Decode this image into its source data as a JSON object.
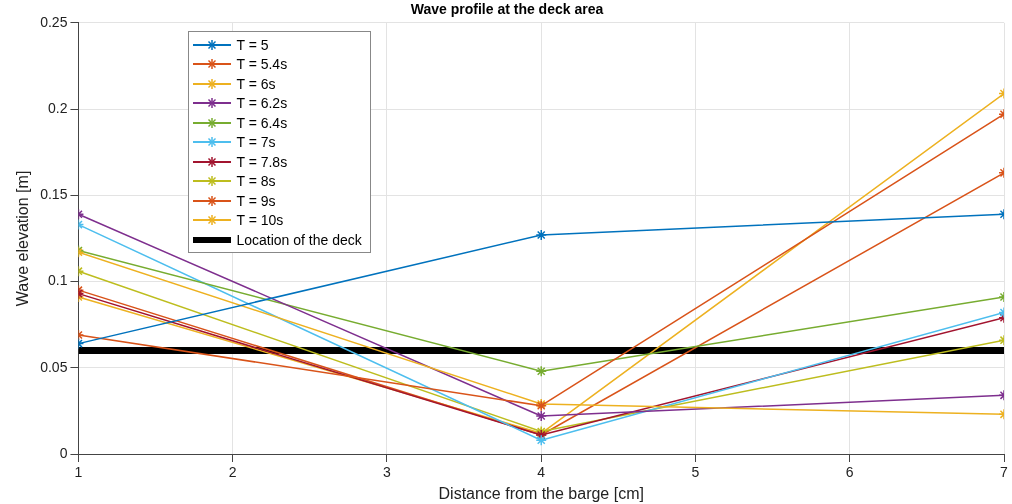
{
  "chart_data": {
    "type": "line",
    "title": "Wave profile at the deck area",
    "xlabel": "Distance from the barge [cm]",
    "ylabel": "Wave elevation [m]",
    "x": [
      1,
      4,
      7
    ],
    "xlim": [
      1,
      7
    ],
    "xticks": [
      1,
      2,
      3,
      4,
      5,
      6,
      7
    ],
    "ylim": [
      0,
      0.25
    ],
    "yticks": [
      0,
      0.05,
      0.1,
      0.15,
      0.2,
      0.25
    ],
    "grid": true,
    "legend": "top left",
    "marker": "cross",
    "line_style": "solid",
    "series": [
      {
        "name": "T = 5",
        "color": "#0072bd",
        "values": [
          0.064,
          0.127,
          0.139
        ]
      },
      {
        "name": "T = 5.4s",
        "color": "#d95319",
        "values": [
          0.069,
          0.028,
          0.197
        ]
      },
      {
        "name": "T = 6s",
        "color": "#edb120",
        "values": [
          0.117,
          0.029,
          0.023
        ]
      },
      {
        "name": "T = 6.2s",
        "color": "#7e2f8e",
        "values": [
          0.139,
          0.022,
          0.034
        ]
      },
      {
        "name": "T = 6.4s",
        "color": "#77ac30",
        "values": [
          0.118,
          0.048,
          0.091
        ]
      },
      {
        "name": "T = 7s",
        "color": "#4dbeee",
        "values": [
          0.133,
          0.008,
          0.082
        ]
      },
      {
        "name": "T = 7.8s",
        "color": "#a2142f",
        "values": [
          0.093,
          0.011,
          0.079
        ]
      },
      {
        "name": "T = 8s",
        "color": "#bdbd1e",
        "values": [
          0.106,
          0.013,
          0.066
        ]
      },
      {
        "name": "T = 9s",
        "color": "#d95319",
        "values": [
          0.095,
          0.011,
          0.163
        ]
      },
      {
        "name": "T = 10s",
        "color": "#edb120",
        "values": [
          0.091,
          0.012,
          0.209
        ]
      }
    ],
    "ref_lines": [
      {
        "axis": "y",
        "value": 0.06,
        "label": "Location of the deck",
        "color": "#000000"
      }
    ]
  }
}
